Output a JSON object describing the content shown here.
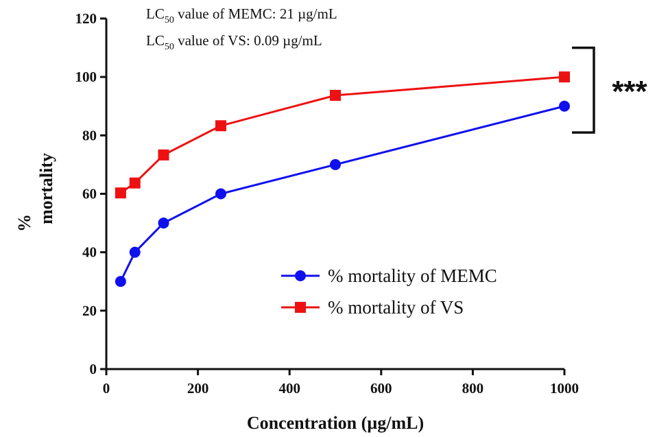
{
  "chart_data": {
    "type": "line",
    "xlabel": "Concentration (µg/mL)",
    "ylabel_line1": "%",
    "ylabel_line2": "mortality",
    "xlim": [
      0,
      1000
    ],
    "ylim": [
      0,
      120
    ],
    "xticks": [
      0,
      200,
      400,
      600,
      800,
      1000
    ],
    "yticks": [
      0,
      20,
      40,
      60,
      80,
      100,
      120
    ],
    "grid": false,
    "legend_position": "center-right",
    "x": [
      31.25,
      62.5,
      125,
      250,
      500,
      1000
    ],
    "series": [
      {
        "name": "% mortality of MEMC",
        "marker": "circle",
        "color": "#1010ee",
        "values": [
          30,
          40,
          50,
          60,
          70,
          90
        ]
      },
      {
        "name": "% mortality of VS",
        "marker": "square",
        "color": "#ee1111",
        "values": [
          60.3,
          63.7,
          73.3,
          83.3,
          93.7,
          100
        ]
      }
    ],
    "annotations": [
      {
        "prefix": "LC",
        "sub": "50",
        "text": " value of MEMC: 21 µg/mL"
      },
      {
        "prefix": "LC",
        "sub": "50",
        "text": " value of VS: 0.09 µg/mL"
      }
    ],
    "significance": {
      "label": "***",
      "y_range": [
        81,
        110
      ]
    }
  }
}
